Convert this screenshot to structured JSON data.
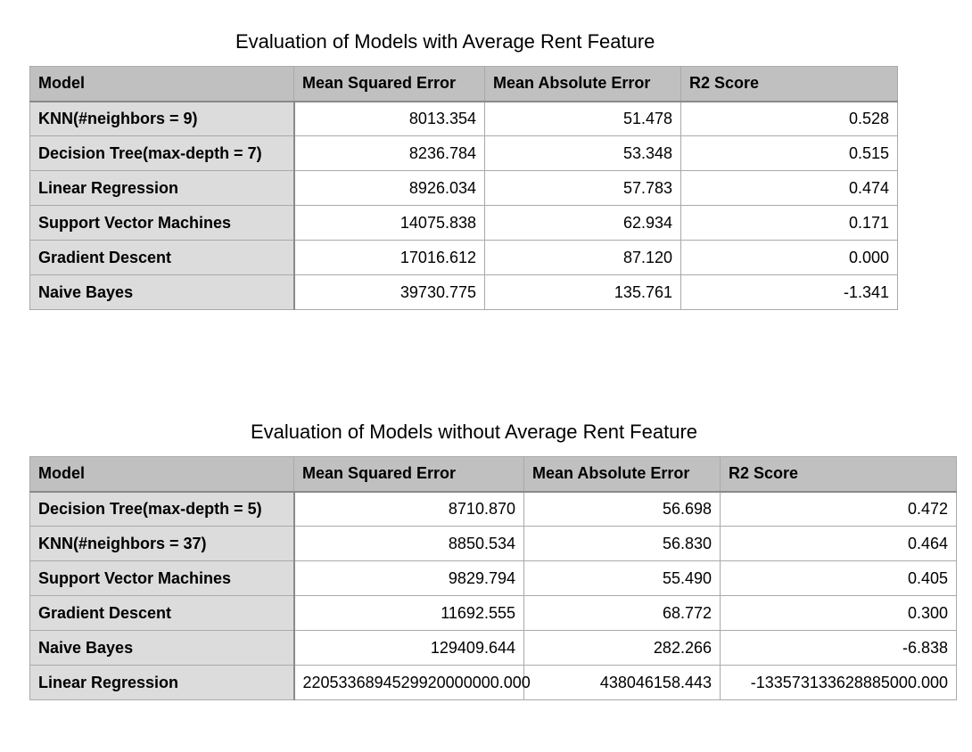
{
  "tables": [
    {
      "caption": "Evaluation of Models with Average Rent Feature",
      "columns": [
        "Model",
        "Mean Squared Error",
        "Mean Absolute Error",
        "R2 Score"
      ],
      "rows": [
        [
          "KNN(#neighbors = 9)",
          "8013.354",
          "51.478",
          "0.528"
        ],
        [
          "Decision Tree(max-depth = 7)",
          "8236.784",
          "53.348",
          "0.515"
        ],
        [
          "Linear Regression",
          "8926.034",
          "57.783",
          "0.474"
        ],
        [
          "Support Vector Machines",
          "14075.838",
          "62.934",
          "0.171"
        ],
        [
          "Gradient Descent",
          "17016.612",
          "87.120",
          "0.000"
        ],
        [
          "Naive Bayes",
          "39730.775",
          "135.761",
          "-1.341"
        ]
      ]
    },
    {
      "caption": "Evaluation of Models without Average Rent Feature",
      "columns": [
        "Model",
        "Mean Squared Error",
        "Mean Absolute Error",
        "R2 Score"
      ],
      "rows": [
        [
          "Decision Tree(max-depth = 5)",
          "8710.870",
          "56.698",
          "0.472"
        ],
        [
          "KNN(#neighbors = 37)",
          "8850.534",
          "56.830",
          "0.464"
        ],
        [
          "Support Vector Machines",
          "9829.794",
          "55.490",
          "0.405"
        ],
        [
          "Gradient Descent",
          "11692.555",
          "68.772",
          "0.300"
        ],
        [
          "Naive Bayes",
          "129409.644",
          "282.266",
          "-6.838"
        ],
        [
          "Linear Regression",
          "2205336894529920000000.000",
          "438046158.443",
          "-133573133628885000.000"
        ]
      ]
    }
  ]
}
